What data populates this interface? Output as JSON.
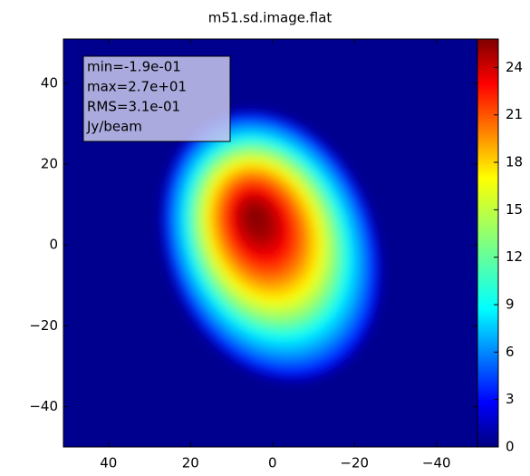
{
  "chart_data": {
    "type": "heatmap",
    "title": "m51.sd.image.flat",
    "colormap": "jet",
    "annotation": [
      "min=-1.9e-01",
      "max=2.7e+01",
      "RMS=3.1e-01",
      "Jy/beam"
    ],
    "xlim": [
      51,
      -50
    ],
    "xticks": [
      40,
      20,
      0,
      {
        "value": -20,
        "label": "−20"
      },
      {
        "value": -40,
        "label": "−40"
      }
    ],
    "ylim": [
      -50,
      51
    ],
    "yticks": [
      {
        "value": -40,
        "label": "−40"
      },
      {
        "value": -20,
        "label": "−20"
      },
      0,
      20,
      40
    ],
    "clim": [
      0,
      25.8
    ],
    "cticks": [
      0,
      3,
      6,
      9,
      12,
      15,
      18,
      21,
      24
    ]
  }
}
